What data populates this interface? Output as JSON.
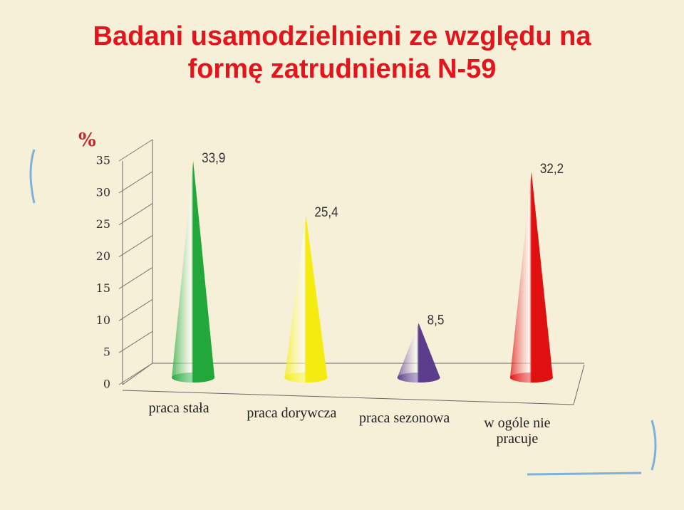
{
  "chart_data": {
    "type": "cone",
    "title": "Badani usamodzielnieni ze względu na formę zatrudnienia N-59",
    "y_label": "%",
    "categories": [
      "praca stała",
      "praca dorywcza",
      "praca sezonowa",
      "w ogóle nie pracuje"
    ],
    "values": [
      33.9,
      25.4,
      8.5,
      32.2
    ],
    "value_labels": [
      "33,9",
      "25,4",
      "8,5",
      "32,2"
    ],
    "colors": [
      "#22a83a",
      "#f4ec10",
      "#5b3d8c",
      "#e01010"
    ],
    "ylim": [
      0,
      35
    ],
    "yticks": [
      0,
      5,
      10,
      15,
      20,
      25,
      30,
      35
    ]
  }
}
